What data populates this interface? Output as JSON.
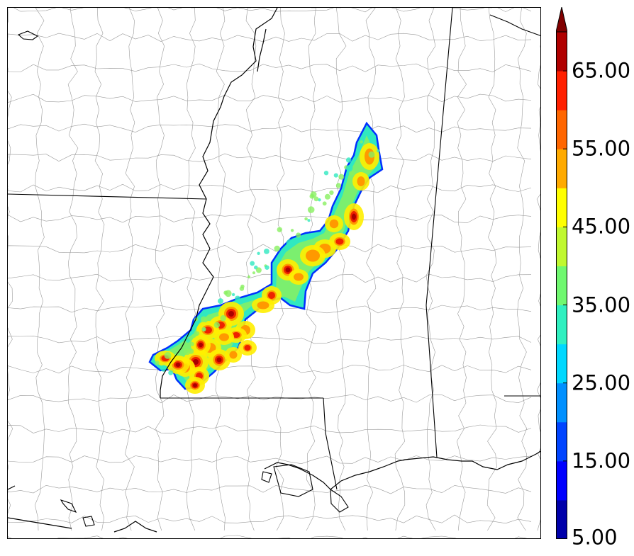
{
  "colorbar": {
    "extend": "max",
    "tick_labels": [
      "5.00",
      "15.00",
      "25.00",
      "35.00",
      "45.00",
      "55.00",
      "65.00"
    ],
    "levels": [
      5,
      10,
      15,
      20,
      25,
      30,
      35,
      40,
      45,
      50,
      55,
      60,
      65,
      70
    ],
    "colors": [
      "#0000aa",
      "#0000ff",
      "#0044ff",
      "#0090ff",
      "#00d8ff",
      "#30f0c0",
      "#70f870",
      "#c0f830",
      "#ffff00",
      "#ffaa00",
      "#ff6600",
      "#ff2000",
      "#b00000",
      "#800000"
    ],
    "over_color": "#800000"
  },
  "map": {
    "field_colors": {
      "edge": "#0030ff",
      "base": "#30e8c0",
      "mid": "#88f060",
      "high": "#ffee00",
      "hot": "#ff9900",
      "core": "#ee2200",
      "peak": "#aa0000"
    },
    "line_colors": {
      "state_border": "#000000",
      "county_border": "#9a9a9a",
      "coastline": "#000000"
    }
  }
}
